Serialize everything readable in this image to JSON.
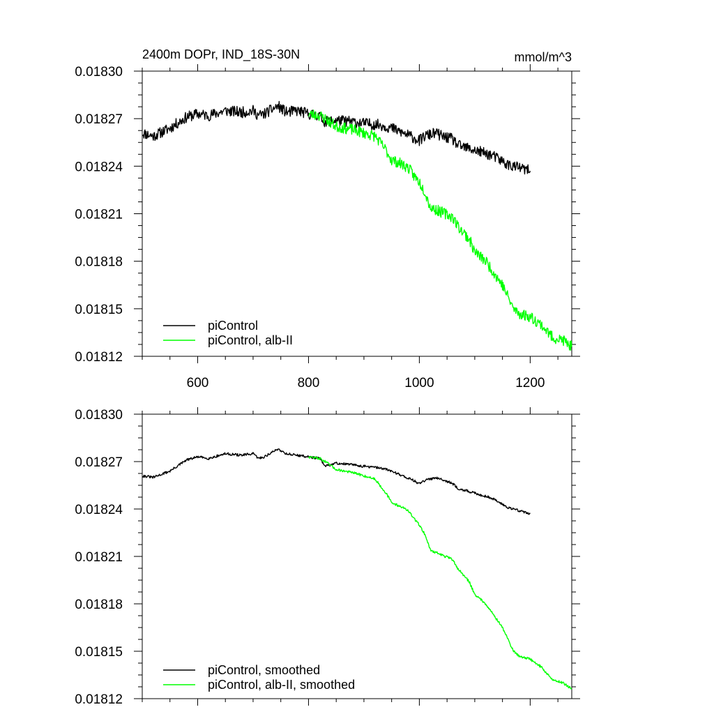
{
  "figure": {
    "title_left": "2400m DOPr, IND_18S-30N",
    "title_right": "mmol/m^3"
  },
  "chart_data": [
    {
      "type": "line",
      "title": "2400m DOPr, IND_18S-30N",
      "units": "mmol/m^3",
      "xlim": [
        500,
        1275
      ],
      "ylim": [
        0.01812,
        0.0183
      ],
      "x_ticks": [
        600,
        800,
        1000,
        1200
      ],
      "x_tick_labels": [
        "600",
        "800",
        "1000",
        "1200"
      ],
      "y_ticks": [
        0.01812,
        0.01815,
        0.01818,
        0.01821,
        0.01824,
        0.01827,
        0.0183
      ],
      "y_tick_labels": [
        "0.01812",
        "0.01815",
        "0.01818",
        "0.01821",
        "0.01824",
        "0.01827",
        "0.01830"
      ],
      "legend": {
        "placement": "bottom-left",
        "entries": [
          "piControl",
          "piControl, alb-II"
        ]
      },
      "series": [
        {
          "name": "piControl",
          "color": "#000000",
          "noise": 3.5e-06,
          "seed": 11,
          "x": [
            500,
            520,
            550,
            580,
            600,
            620,
            650,
            680,
            700,
            710,
            720,
            745,
            760,
            780,
            800,
            820,
            830,
            850,
            880,
            900,
            930,
            950,
            970,
            990,
            1000,
            1010,
            1030,
            1040,
            1060,
            1070,
            1090,
            1110,
            1130,
            1150,
            1160,
            1180,
            1200
          ],
          "values": [
            0.018261,
            0.018259,
            0.018264,
            0.018271,
            0.018273,
            0.018272,
            0.018275,
            0.018274,
            0.018275,
            0.018272,
            0.018273,
            0.018278,
            0.018274,
            0.018275,
            0.018273,
            0.018272,
            0.018268,
            0.018269,
            0.018268,
            0.018267,
            0.018266,
            0.018264,
            0.018261,
            0.018258,
            0.018256,
            0.018259,
            0.018261,
            0.018259,
            0.018257,
            0.018253,
            0.018251,
            0.018249,
            0.018247,
            0.018243,
            0.018241,
            0.018239,
            0.018237
          ]
        },
        {
          "name": "piControl, alb-II",
          "color": "#00ff00",
          "noise": 3.5e-06,
          "seed": 23,
          "x": [
            800,
            820,
            830,
            850,
            880,
            900,
            920,
            940,
            950,
            970,
            980,
            990,
            1000,
            1010,
            1020,
            1040,
            1060,
            1070,
            1090,
            1100,
            1120,
            1140,
            1150,
            1170,
            1180,
            1200,
            1220,
            1240,
            1260,
            1275
          ],
          "values": [
            0.018273,
            0.018272,
            0.01827,
            0.018265,
            0.018263,
            0.018261,
            0.018259,
            0.01825,
            0.018244,
            0.018241,
            0.018239,
            0.018234,
            0.01823,
            0.018224,
            0.018214,
            0.018211,
            0.018208,
            0.018202,
            0.018194,
            0.018186,
            0.01818,
            0.01817,
            0.018165,
            0.01815,
            0.018147,
            0.018145,
            0.01814,
            0.018132,
            0.01813,
            0.018126
          ]
        }
      ]
    },
    {
      "type": "line",
      "title": "",
      "xlim": [
        500,
        1275
      ],
      "ylim": [
        0.01812,
        0.0183
      ],
      "x_ticks": [
        600,
        800,
        1000,
        1200
      ],
      "x_tick_labels": [],
      "y_ticks": [
        0.01812,
        0.01815,
        0.01818,
        0.01821,
        0.01824,
        0.01827,
        0.0183
      ],
      "y_tick_labels": [
        "0.01812",
        "0.01815",
        "0.01818",
        "0.01821",
        "0.01824",
        "0.01827",
        "0.01830"
      ],
      "legend": {
        "placement": "bottom-left",
        "entries": [
          "piControl, smoothed",
          "piControl, alb-II, smoothed"
        ]
      },
      "series": [
        {
          "name": "piControl, smoothed",
          "color": "#000000",
          "noise": 8e-07,
          "seed": 31,
          "x": [
            500,
            520,
            550,
            580,
            600,
            620,
            650,
            680,
            700,
            710,
            720,
            745,
            760,
            780,
            800,
            820,
            830,
            850,
            880,
            900,
            930,
            950,
            970,
            990,
            1000,
            1010,
            1030,
            1040,
            1060,
            1070,
            1090,
            1110,
            1130,
            1150,
            1160,
            1180,
            1200
          ],
          "values": [
            0.018261,
            0.01826,
            0.018264,
            0.018271,
            0.018273,
            0.018272,
            0.018275,
            0.018274,
            0.018275,
            0.018272,
            0.018273,
            0.018278,
            0.018275,
            0.018274,
            0.018273,
            0.018272,
            0.018267,
            0.018269,
            0.018268,
            0.018267,
            0.018266,
            0.018264,
            0.018261,
            0.018258,
            0.018256,
            0.018258,
            0.01826,
            0.018259,
            0.018256,
            0.018253,
            0.018251,
            0.018249,
            0.018247,
            0.018243,
            0.018241,
            0.018239,
            0.018237
          ]
        },
        {
          "name": "piControl, alb-II, smoothed",
          "color": "#00ff00",
          "noise": 8e-07,
          "seed": 47,
          "x": [
            800,
            820,
            830,
            850,
            880,
            900,
            920,
            940,
            950,
            970,
            980,
            990,
            1000,
            1010,
            1020,
            1040,
            1060,
            1070,
            1090,
            1100,
            1120,
            1140,
            1150,
            1170,
            1180,
            1200,
            1220,
            1240,
            1260,
            1275
          ],
          "values": [
            0.018273,
            0.018272,
            0.01827,
            0.018265,
            0.018263,
            0.018261,
            0.018259,
            0.01825,
            0.018244,
            0.018241,
            0.018239,
            0.018234,
            0.01823,
            0.018224,
            0.018214,
            0.018211,
            0.018208,
            0.018202,
            0.018194,
            0.018186,
            0.01818,
            0.01817,
            0.018165,
            0.01815,
            0.018147,
            0.018145,
            0.01814,
            0.018132,
            0.01813,
            0.018126
          ]
        }
      ]
    }
  ]
}
